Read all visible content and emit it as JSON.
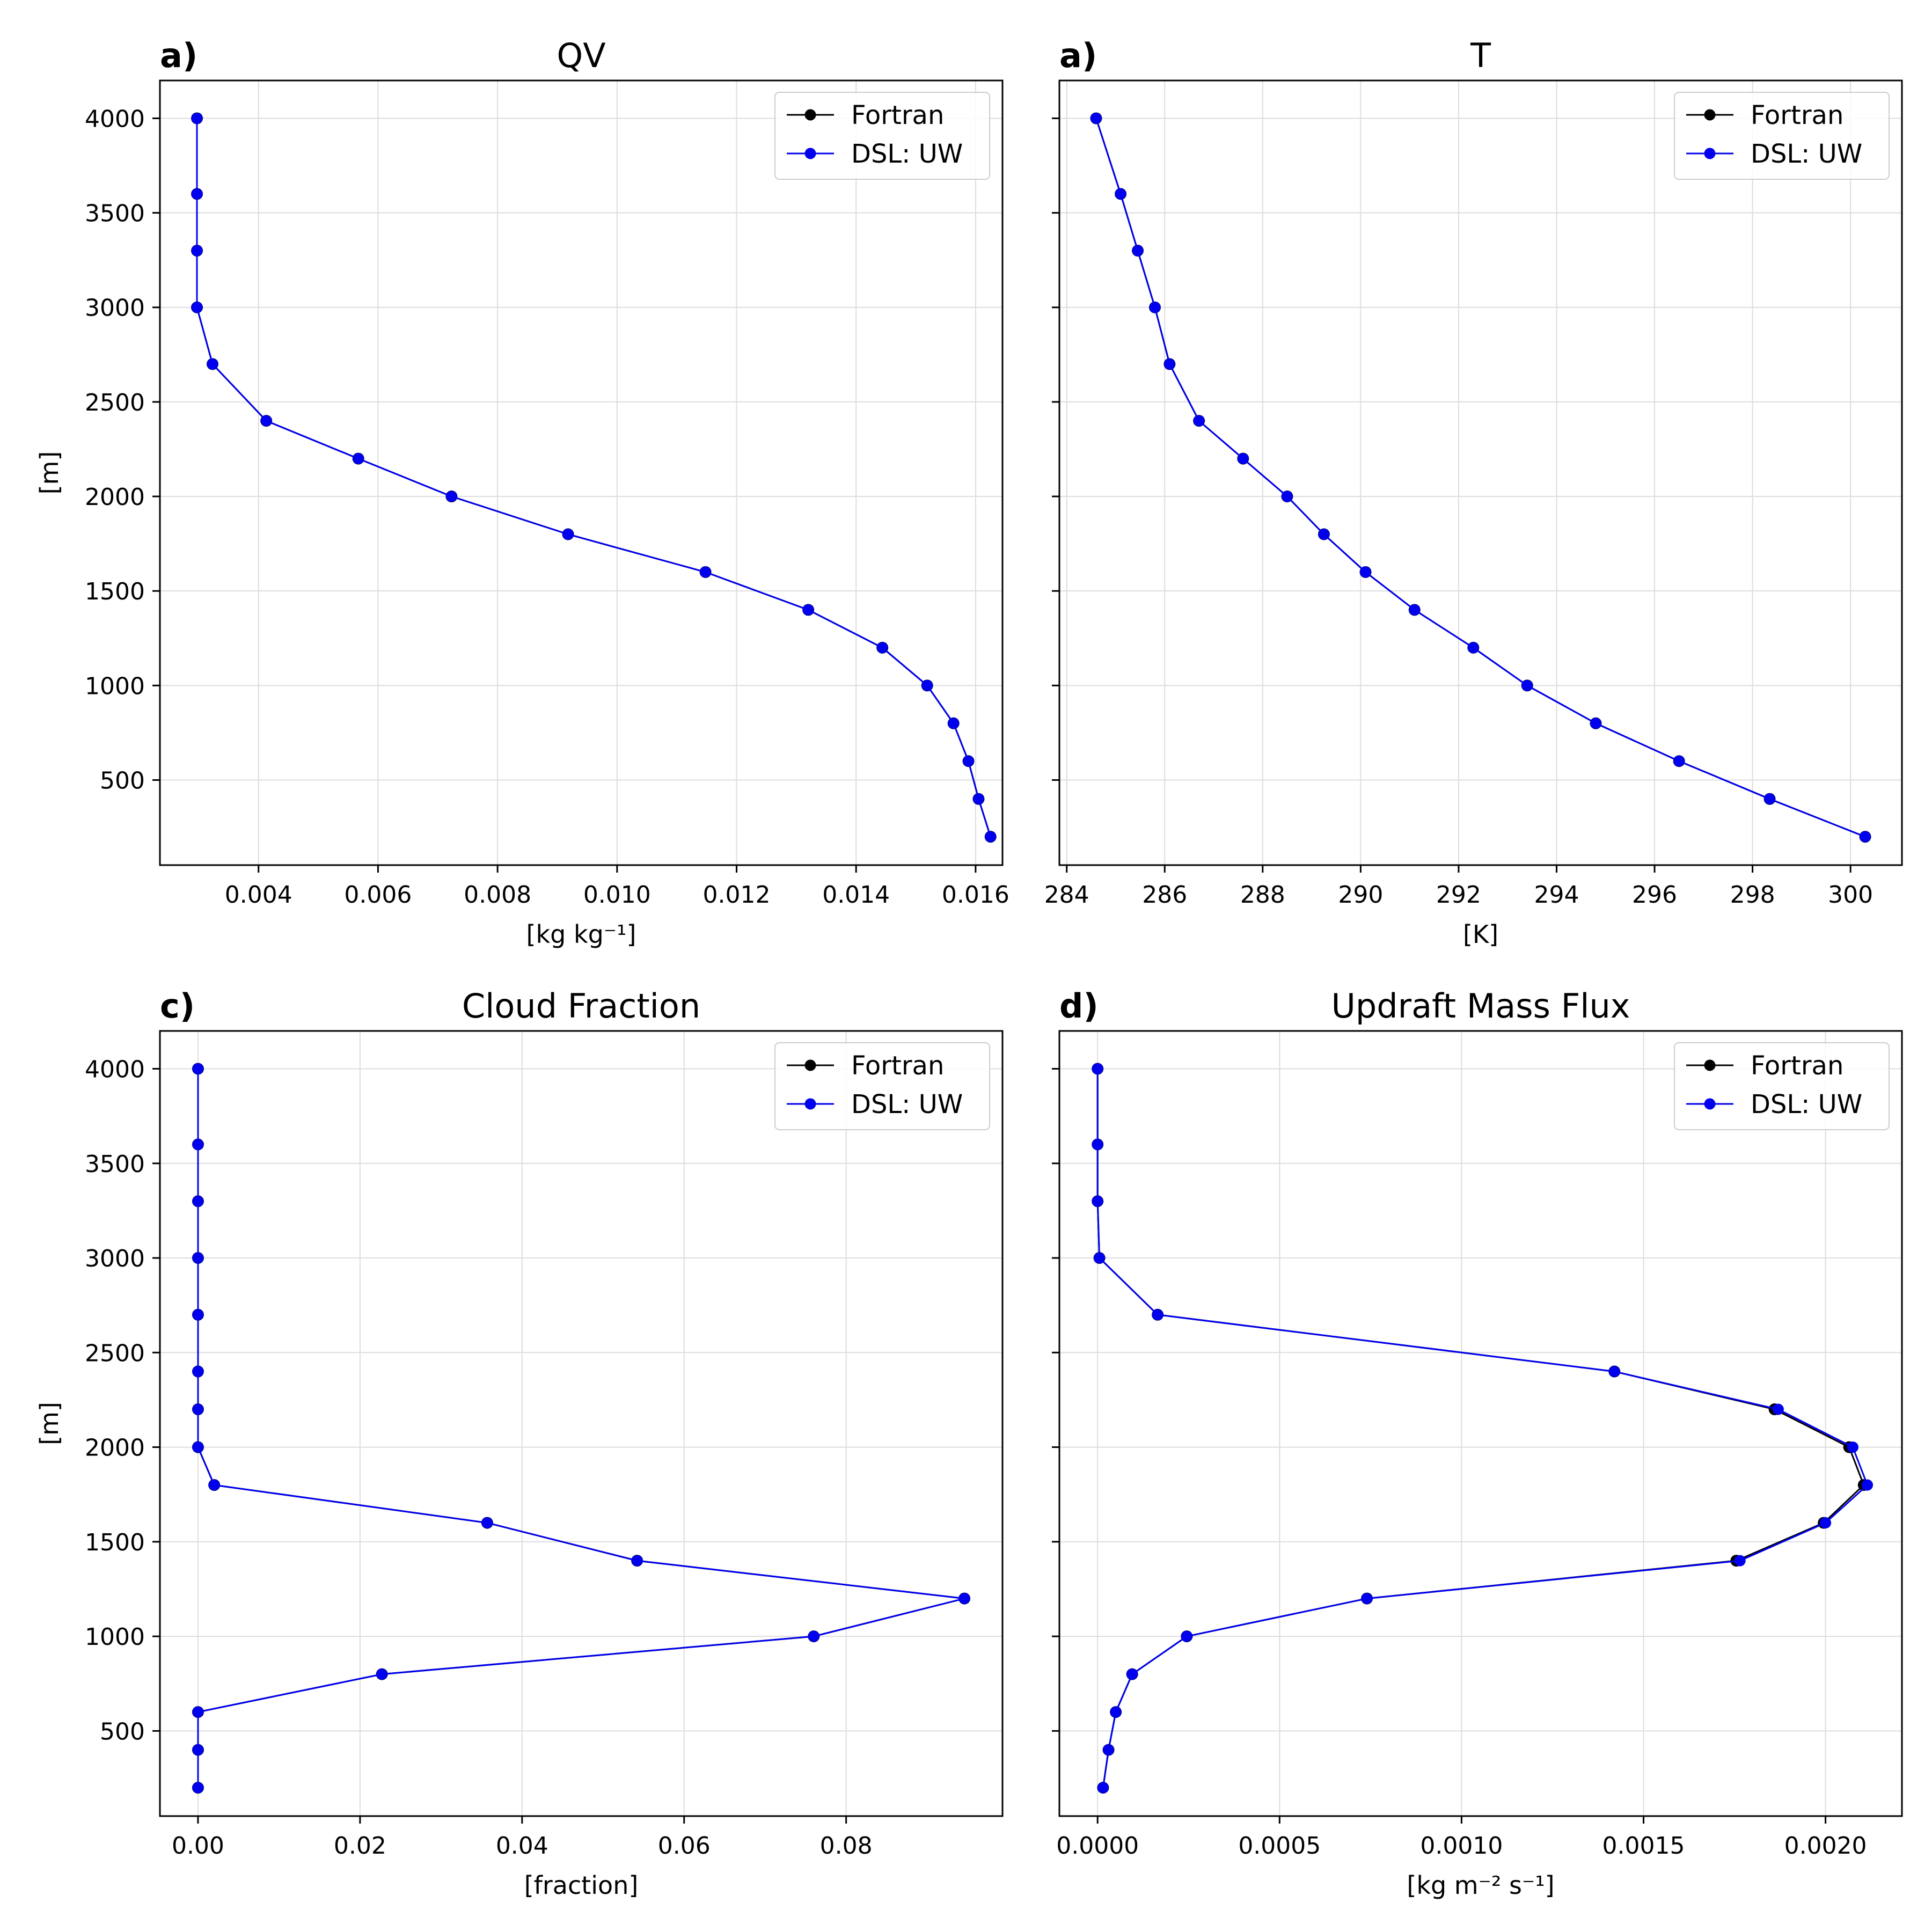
{
  "colors": {
    "fortran": "#000000",
    "dsl": "#0000ee",
    "grid": "#dddddd",
    "frame": "#000000"
  },
  "legend": {
    "entries": [
      "Fortran",
      "DSL: UW"
    ],
    "placement": "upper right"
  },
  "chart_data": [
    {
      "type": "line",
      "panel_label": "a)",
      "title": "QV",
      "xlabel": "[kg kg⁻¹]",
      "ylabel": "[m]",
      "xlim": [
        0.00235,
        0.01645
      ],
      "ylim": [
        50,
        4200
      ],
      "xticks": [
        0.004,
        0.006,
        0.008,
        0.01,
        0.012,
        0.014,
        0.016
      ],
      "xtick_labels": [
        "0.004",
        "0.006",
        "0.008",
        "0.010",
        "0.012",
        "0.014",
        "0.016"
      ],
      "yticks": [
        500,
        1000,
        1500,
        2000,
        2500,
        3000,
        3500,
        4000
      ],
      "ytick_labels": [
        "500",
        "1000",
        "1500",
        "2000",
        "2500",
        "3000",
        "3500",
        "4000"
      ],
      "show_ylabels": true,
      "series": [
        {
          "name": "Fortran",
          "x": [
            0.01625,
            0.01605,
            0.01588,
            0.01563,
            0.01519,
            0.01444,
            0.0132,
            0.01148,
            0.00918,
            0.00723,
            0.00567,
            0.00413,
            0.00323,
            0.00297,
            0.00297,
            0.00297,
            0.00297
          ],
          "y": [
            200,
            400,
            600,
            800,
            1000,
            1200,
            1400,
            1600,
            1800,
            2000,
            2200,
            2400,
            2700,
            3000,
            3300,
            3600,
            4000
          ]
        },
        {
          "name": "DSL: UW",
          "x": [
            0.01625,
            0.01605,
            0.01588,
            0.01563,
            0.01519,
            0.01444,
            0.0132,
            0.01148,
            0.00918,
            0.00723,
            0.00567,
            0.00413,
            0.00323,
            0.00297,
            0.00297,
            0.00297,
            0.00297
          ],
          "y": [
            200,
            400,
            600,
            800,
            1000,
            1200,
            1400,
            1600,
            1800,
            2000,
            2200,
            2400,
            2700,
            3000,
            3300,
            3600,
            4000
          ]
        }
      ]
    },
    {
      "type": "line",
      "panel_label": "a)",
      "title": "T",
      "xlabel": "[K]",
      "ylabel": "",
      "xlim": [
        283.85,
        301.05
      ],
      "ylim": [
        50,
        4200
      ],
      "xticks": [
        284,
        286,
        288,
        290,
        292,
        294,
        296,
        298,
        300
      ],
      "xtick_labels": [
        "284",
        "286",
        "288",
        "290",
        "292",
        "294",
        "296",
        "298",
        "300"
      ],
      "yticks": [
        500,
        1000,
        1500,
        2000,
        2500,
        3000,
        3500,
        4000
      ],
      "ytick_labels": [],
      "show_ylabels": false,
      "series": [
        {
          "name": "Fortran",
          "x": [
            300.3,
            298.35,
            296.5,
            294.8,
            293.4,
            292.3,
            291.1,
            290.1,
            289.25,
            288.5,
            287.6,
            286.7,
            286.1,
            285.8,
            285.45,
            285.1,
            284.6
          ],
          "y": [
            200,
            400,
            600,
            800,
            1000,
            1200,
            1400,
            1600,
            1800,
            2000,
            2200,
            2400,
            2700,
            3000,
            3300,
            3600,
            4000
          ]
        },
        {
          "name": "DSL: UW",
          "x": [
            300.3,
            298.35,
            296.5,
            294.8,
            293.4,
            292.3,
            291.1,
            290.1,
            289.25,
            288.5,
            287.6,
            286.7,
            286.1,
            285.8,
            285.45,
            285.1,
            284.6
          ],
          "y": [
            200,
            400,
            600,
            800,
            1000,
            1200,
            1400,
            1600,
            1800,
            2000,
            2200,
            2400,
            2700,
            3000,
            3300,
            3600,
            4000
          ]
        }
      ]
    },
    {
      "type": "line",
      "panel_label": "c)",
      "title": "Cloud Fraction",
      "xlabel": "[fraction]",
      "ylabel": "[m]",
      "xlim": [
        -0.0047,
        0.0993
      ],
      "ylim": [
        50,
        4200
      ],
      "xticks": [
        0.0,
        0.02,
        0.04,
        0.06,
        0.08
      ],
      "xtick_labels": [
        "0.00",
        "0.02",
        "0.04",
        "0.06",
        "0.08"
      ],
      "yticks": [
        500,
        1000,
        1500,
        2000,
        2500,
        3000,
        3500,
        4000
      ],
      "ytick_labels": [
        "500",
        "1000",
        "1500",
        "2000",
        "2500",
        "3000",
        "3500",
        "4000"
      ],
      "show_ylabels": true,
      "series": [
        {
          "name": "Fortran",
          "x": [
            0,
            0,
            0,
            0.0227,
            0.076,
            0.0946,
            0.0542,
            0.0357,
            0.002,
            0,
            0,
            0,
            0,
            0,
            0,
            0,
            0
          ],
          "y": [
            200,
            400,
            600,
            800,
            1000,
            1200,
            1400,
            1600,
            1800,
            2000,
            2200,
            2400,
            2700,
            3000,
            3300,
            3600,
            4000
          ]
        },
        {
          "name": "DSL: UW",
          "x": [
            0,
            0,
            0,
            0.0227,
            0.076,
            0.0946,
            0.0542,
            0.0357,
            0.002,
            0,
            0,
            0,
            0,
            0,
            0,
            0,
            0
          ],
          "y": [
            200,
            400,
            600,
            800,
            1000,
            1200,
            1400,
            1600,
            1800,
            2000,
            2200,
            2400,
            2700,
            3000,
            3300,
            3600,
            4000
          ]
        }
      ]
    },
    {
      "type": "line",
      "panel_label": "d)",
      "title": "Updraft Mass Flux",
      "xlabel": "[kg m⁻² s⁻¹]",
      "ylabel": "",
      "xlim": [
        -0.000105,
        0.00221
      ],
      "ylim": [
        50,
        4200
      ],
      "xticks": [
        0.0,
        0.0005,
        0.001,
        0.0015,
        0.002
      ],
      "xtick_labels": [
        "0.0000",
        "0.0005",
        "0.0010",
        "0.0015",
        "0.0020"
      ],
      "yticks": [
        500,
        1000,
        1500,
        2000,
        2500,
        3000,
        3500,
        4000
      ],
      "ytick_labels": [],
      "show_ylabels": false,
      "series": [
        {
          "name": "Fortran",
          "x": [
            1.5e-05,
            3e-05,
            5e-05,
            9.5e-05,
            0.000245,
            0.00074,
            0.001755,
            0.001995,
            0.002105,
            0.002065,
            0.00186,
            0.00142,
            0.000165,
            5e-06,
            0.0,
            0.0,
            0.0
          ],
          "y": [
            200,
            400,
            600,
            800,
            1000,
            1200,
            1400,
            1600,
            1800,
            2000,
            2200,
            2400,
            2700,
            3000,
            3300,
            3600,
            4000
          ]
        },
        {
          "name": "DSL: UW",
          "x": [
            1.5e-05,
            3e-05,
            5e-05,
            9.5e-05,
            0.000245,
            0.00074,
            0.001765,
            0.002,
            0.002115,
            0.002075,
            0.00187,
            0.00142,
            0.000165,
            5e-06,
            0.0,
            0.0,
            0.0
          ],
          "y": [
            200,
            400,
            600,
            800,
            1000,
            1200,
            1400,
            1600,
            1800,
            2000,
            2200,
            2400,
            2700,
            3000,
            3300,
            3600,
            4000
          ]
        }
      ]
    }
  ]
}
